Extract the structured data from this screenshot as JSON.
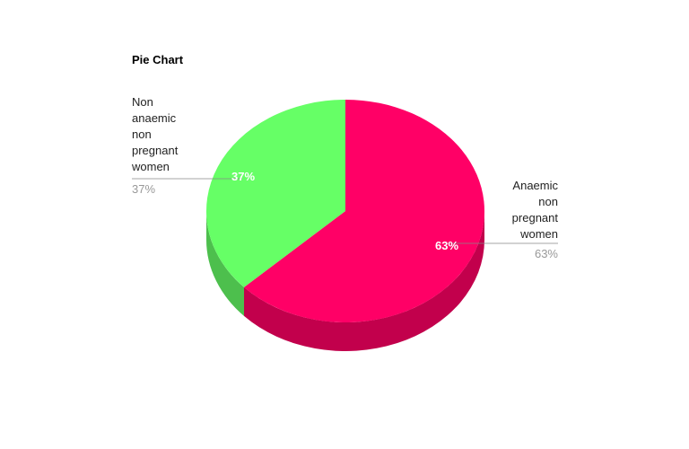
{
  "chart_data": {
    "type": "pie",
    "title": "Pie Chart",
    "style": "3d",
    "slices": [
      {
        "name_lines": [
          "Anaemic",
          "non",
          "pregnant",
          "women"
        ],
        "value": 63,
        "value_label": "63%",
        "color": "#ff0066",
        "side_color": "#c2004c"
      },
      {
        "name_lines": [
          "Non",
          "anaemic",
          "non",
          "pregnant",
          "women"
        ],
        "value": 37,
        "value_label": "37%",
        "color": "#66ff66",
        "side_color": "#4dbf4d"
      }
    ]
  }
}
